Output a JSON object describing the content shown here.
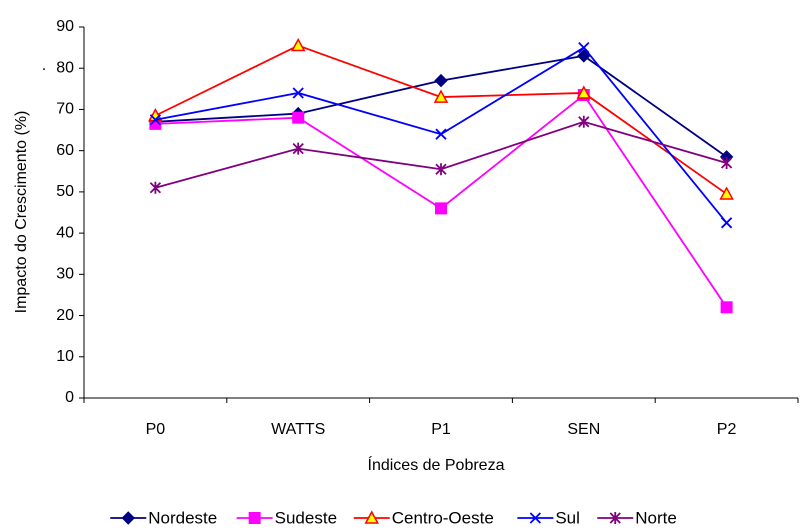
{
  "chart_data": {
    "type": "line",
    "x_label": "Índices de Pobreza",
    "y_label": "Impacto do Crescimento (%)",
    "annotation": ".",
    "categories": [
      "P0",
      "WATTS",
      "P1",
      "SEN",
      "P2"
    ],
    "series": [
      {
        "name": "Nordeste",
        "color": "#000080",
        "marker": "diamond",
        "values": [
          67,
          69,
          77,
          83,
          58.5
        ]
      },
      {
        "name": "Sudeste",
        "color": "#FF00FF",
        "marker": "square",
        "values": [
          66.5,
          68,
          46,
          73.5,
          22
        ]
      },
      {
        "name": "Centro-Oeste",
        "color": "#FF0000",
        "marker": "triangle",
        "values": [
          68.5,
          85.5,
          73,
          74,
          49.5
        ]
      },
      {
        "name": "Sul",
        "color": "#0000FF",
        "marker": "x",
        "values": [
          67.5,
          74,
          64,
          85,
          42.5
        ]
      },
      {
        "name": "Norte",
        "color": "#800080",
        "marker": "star",
        "values": [
          51,
          60.5,
          55.5,
          67,
          57
        ]
      }
    ],
    "ylim": [
      0,
      90
    ],
    "yticks": [
      0,
      10,
      20,
      30,
      40,
      50,
      60,
      70,
      80,
      90
    ],
    "grid": false
  }
}
